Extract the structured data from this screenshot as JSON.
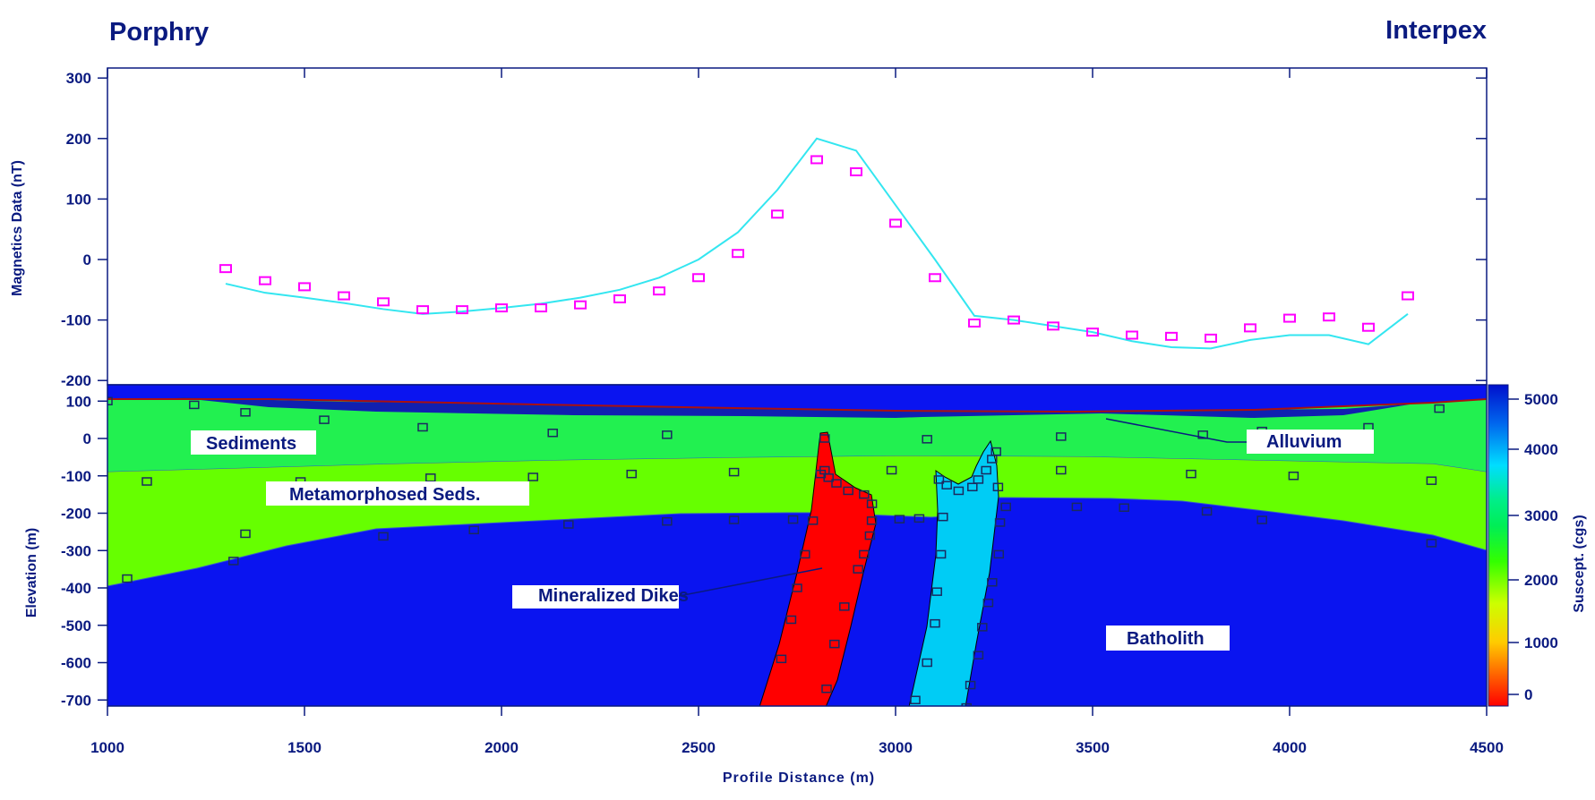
{
  "header": {
    "title_left": "Porphry",
    "title_right": "Interpex"
  },
  "colors": {
    "text": "#0a1a80",
    "calculated_curve": "#33e6f0",
    "observed_marker": "#ff00ff",
    "batholith": "#0a14f0",
    "sediments": "#22f050",
    "metamorphosed_seds": "#66ff00",
    "alluvium": "#1020b0",
    "mineralized_dike": "#ff0000",
    "intrusive_dike": "#00ccf5"
  },
  "chart_data": [
    {
      "type": "line",
      "panel": "magnetics",
      "ylabel": "Magnetics Data (nT)",
      "ylim": [
        -220,
        320
      ],
      "y_ticks": [
        300,
        200,
        100,
        0,
        -100,
        -200
      ],
      "series": [
        {
          "x": [
            1300,
            1400,
            1500,
            1600,
            1700,
            1800,
            1900,
            2000,
            2100,
            2200,
            2300,
            2400,
            2500,
            2600,
            2700,
            2800,
            2900,
            3000,
            3100,
            3200,
            3300,
            3400,
            3500,
            3600,
            3700,
            3800,
            3900,
            4000,
            4100,
            4200,
            4300
          ],
          "y": [
            -40,
            -55,
            -63,
            -72,
            -82,
            -90,
            -86,
            -80,
            -73,
            -63,
            -50,
            -30,
            0,
            45,
            115,
            200,
            180,
            90,
            0,
            -93,
            -100,
            -110,
            -120,
            -135,
            -145,
            -147,
            -133,
            -125,
            -125,
            -140,
            -90
          ]
        },
        {
          "x": [
            1300,
            1400,
            1500,
            1600,
            1700,
            1800,
            1900,
            2000,
            2100,
            2200,
            2300,
            2400,
            2500,
            2600,
            2700,
            2800,
            2900,
            3000,
            3100,
            3200,
            3300,
            3400,
            3500,
            3600,
            3700,
            3800,
            3900,
            4000,
            4100,
            4200,
            4300
          ],
          "y": [
            -15,
            -35,
            -45,
            -60,
            -70,
            -83,
            -83,
            -80,
            -80,
            -75,
            -65,
            -52,
            -30,
            10,
            75,
            165,
            145,
            60,
            -30,
            -105,
            -100,
            -110,
            -120,
            -125,
            -127,
            -130,
            -113,
            -97,
            -95,
            -112,
            -60
          ]
        }
      ]
    },
    {
      "type": "heatmap",
      "panel": "model_section",
      "xlabel": "Profile Distance (m)",
      "ylabel": "Elevation (m)",
      "xlim": [
        1000,
        4500
      ],
      "ylim": [
        -720,
        110
      ],
      "x_ticks": [
        1000,
        1500,
        2000,
        2500,
        3000,
        3500,
        4000,
        4500
      ],
      "y_ticks": [
        100,
        0,
        -100,
        -200,
        -300,
        -400,
        -500,
        -600,
        -700
      ],
      "layer_labels": [
        "Sediments",
        "Metamorphosed Seds.",
        "Alluvium",
        "Mineralized Dikes",
        "Batholith"
      ],
      "colorbar": {
        "label": "Suscept. (cgs)",
        "ticks": [
          "5000",
          "4000",
          "3000",
          "2000",
          "1000",
          "0"
        ]
      }
    }
  ]
}
